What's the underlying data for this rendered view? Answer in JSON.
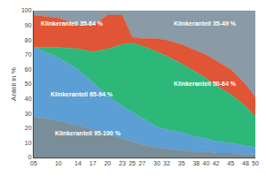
{
  "chart_data": {
    "type": "area",
    "stacked": true,
    "ylabel": "Anteil in %",
    "x": [
      2005,
      2010,
      2014,
      2017,
      2020,
      2023,
      2025,
      2027,
      2030,
      2032,
      2035,
      2038,
      2040,
      2042,
      2045,
      2048,
      2050
    ],
    "series": [
      {
        "name": "Klinkeranteil 95-100 %",
        "color": "#7a8e9a",
        "values": [
          28,
          25,
          22,
          19,
          16,
          13,
          11,
          9,
          7,
          6,
          5,
          4,
          4,
          3,
          3,
          2,
          2
        ]
      },
      {
        "name": "Klinkeranteil 65-94 %",
        "color": "#5b9fd4",
        "values": [
          47,
          43,
          38,
          32,
          26,
          22,
          20,
          18,
          14,
          13,
          12,
          10,
          9,
          8,
          7,
          6,
          5
        ]
      },
      {
        "name": "Klinkeranteil 50-64 %",
        "color": "#2db87a",
        "values": [
          0,
          7,
          14,
          21,
          32,
          42,
          47,
          49,
          51,
          50,
          47,
          44,
          41,
          38,
          33,
          27,
          21
        ]
      },
      {
        "name": "Klinkeranteil 35-64 %",
        "color": "#e05535",
        "values": [
          22,
          20,
          16,
          18,
          23,
          20,
          4,
          5,
          9,
          11,
          13,
          15,
          16,
          17,
          17,
          15,
          13
        ]
      },
      {
        "name": "Klinkeranteil 35-49 %",
        "color": "#8a9ba7",
        "values": [
          3,
          5,
          10,
          10,
          3,
          3,
          18,
          19,
          19,
          20,
          23,
          27,
          30,
          34,
          40,
          50,
          59
        ]
      }
    ],
    "annotations": [
      {
        "text": "Klinkeranteil 95-100 %",
        "x": 2009,
        "y": 13
      },
      {
        "text": "Klinkeranteil 65-94 %",
        "x": 2008,
        "y": 40
      },
      {
        "text": "Klinkeranteil 50-64 %",
        "x": 2033,
        "y": 47
      },
      {
        "text": "Klinkeranteil 35-64 %",
        "x": 2006,
        "y": 88
      },
      {
        "text": "Klinkeranteil 35-49 %",
        "x": 2033,
        "y": 88
      }
    ],
    "xlim": [
      2005,
      2050
    ],
    "xticks": [
      {
        "value": 2005,
        "label": "05"
      },
      {
        "value": 2010,
        "label": "10"
      },
      {
        "value": 2014,
        "label": "14"
      },
      {
        "value": 2017,
        "label": "17"
      },
      {
        "value": 2020,
        "label": "20"
      },
      {
        "value": 2023,
        "label": "23"
      },
      {
        "value": 2025,
        "label": "25"
      },
      {
        "value": 2027,
        "label": "27"
      },
      {
        "value": 2030,
        "label": "30"
      },
      {
        "value": 2032,
        "label": "32"
      },
      {
        "value": 2035,
        "label": "35"
      },
      {
        "value": 2038,
        "label": "38"
      },
      {
        "value": 2040,
        "label": "40"
      },
      {
        "value": 2042,
        "label": "42"
      },
      {
        "value": 2045,
        "label": "45"
      },
      {
        "value": 2048,
        "label": "48"
      },
      {
        "value": 2050,
        "label": "50"
      }
    ],
    "ylim": [
      0,
      100
    ],
    "yticks": [
      0,
      10,
      20,
      30,
      40,
      50,
      60,
      70,
      80,
      90,
      100
    ],
    "grid": true
  }
}
